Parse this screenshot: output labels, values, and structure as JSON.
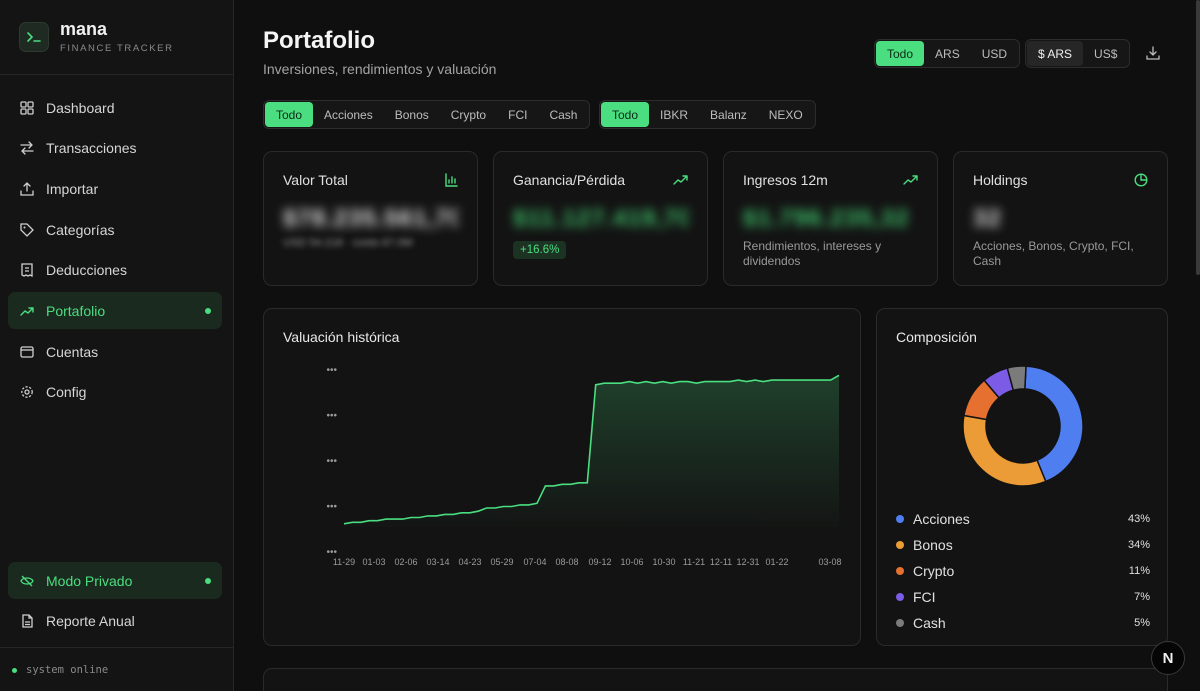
{
  "brand": {
    "name": "mana",
    "subtitle": "FINANCE TRACKER"
  },
  "nav": {
    "items": [
      {
        "label": "Dashboard",
        "icon": "grid-icon"
      },
      {
        "label": "Transacciones",
        "icon": "arrows-icon"
      },
      {
        "label": "Importar",
        "icon": "upload-icon"
      },
      {
        "label": "Categorías",
        "icon": "tag-icon"
      },
      {
        "label": "Deducciones",
        "icon": "receipt-icon"
      },
      {
        "label": "Portafolio",
        "icon": "trending-up-icon",
        "active": true
      },
      {
        "label": "Cuentas",
        "icon": "wallet-icon"
      },
      {
        "label": "Config",
        "icon": "gear-icon"
      }
    ],
    "private_mode": "Modo Privado",
    "annual_report": "Reporte Anual",
    "status": "system online"
  },
  "header": {
    "title": "Portafolio",
    "subtitle": "Inversiones, rendimientos y valuación",
    "currency_filter": [
      "Todo",
      "ARS",
      "USD"
    ],
    "display_currency": [
      "$ ARS",
      "US$"
    ]
  },
  "filters": {
    "asset_types": [
      "Todo",
      "Acciones",
      "Bonos",
      "Crypto",
      "FCI",
      "Cash"
    ],
    "brokers": [
      "Todo",
      "IBKR",
      "Balanz",
      "NEXO"
    ]
  },
  "stats": {
    "total": {
      "label": "Valor Total",
      "value": "$78.235.561,70",
      "sub": "USD 54.218 · costo 67.0M"
    },
    "pnl": {
      "label": "Ganancia/Pérdida",
      "value": "$11.127.419,70",
      "badge": "+16.6%"
    },
    "income": {
      "label": "Ingresos 12m",
      "value": "$1.796.235,32",
      "note": "Rendimientos, intereses y dividendos"
    },
    "holdings": {
      "label": "Holdings",
      "value": "32",
      "note": "Acciones, Bonos, Crypto, FCI, Cash"
    }
  },
  "chart_data": {
    "type": "area",
    "title": "Valuación histórica",
    "xlabel": "",
    "ylabel": "",
    "y_tick_labels": [
      "•••",
      "•••",
      "•••",
      "•••",
      "•••"
    ],
    "x_tick_labels": [
      "11-29",
      "01-03",
      "02-06",
      "03-14",
      "04-23",
      "05-29",
      "07-04",
      "08-08",
      "09-12",
      "10-06",
      "10-30",
      "11-21",
      "12-11",
      "12-31",
      "01-22",
      "03-08"
    ],
    "ylim": [
      0,
      100
    ],
    "values": [
      2,
      3,
      3,
      4,
      4,
      5,
      5,
      5,
      6,
      6,
      7,
      7,
      8,
      8,
      9,
      9,
      10,
      12,
      12,
      13,
      13,
      14,
      14,
      15,
      26,
      26,
      27,
      27,
      28,
      28,
      90,
      91,
      91,
      91,
      92,
      91,
      92,
      91,
      92,
      91,
      92,
      92,
      91,
      92,
      92,
      92,
      92,
      93,
      92,
      93,
      92,
      93,
      93,
      93,
      93,
      93,
      93,
      93,
      93,
      96
    ]
  },
  "composition": {
    "title": "Composición",
    "slices": [
      {
        "name": "Acciones",
        "value": 43,
        "pct": "43%",
        "color": "#4f7ef0"
      },
      {
        "name": "Bonos",
        "value": 34,
        "pct": "34%",
        "color": "#ec9c36"
      },
      {
        "name": "Crypto",
        "value": 11,
        "pct": "11%",
        "color": "#e5702f"
      },
      {
        "name": "FCI",
        "value": 7,
        "pct": "7%",
        "color": "#7c5ce6"
      },
      {
        "name": "Cash",
        "value": 5,
        "pct": "5%",
        "color": "#7b7b7b"
      }
    ]
  },
  "fab_label": "N",
  "colors": {
    "accent": "#4ade80",
    "background": "#0f0f0f",
    "card": "#131313"
  }
}
